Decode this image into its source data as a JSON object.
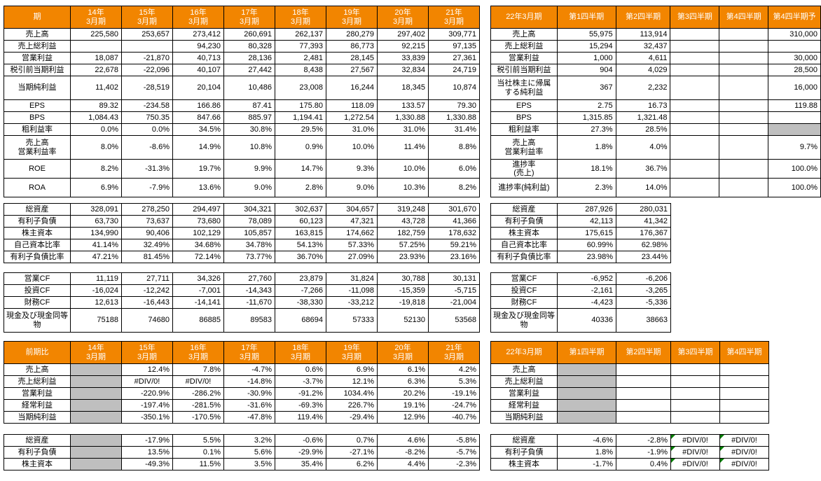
{
  "colors": {
    "header_bg": "#F28500",
    "header_text": "#FFFFFF",
    "gray_cell": "#BFBFBF",
    "grid_border": "#000000",
    "error_flag": "#008000",
    "page_bg": "#FFFFFF"
  },
  "tables": {
    "annual": {
      "corner": "期",
      "headers": [
        "14年\n3月期",
        "15年\n3月期",
        "16年\n3月期",
        "17年\n3月期",
        "18年\n3月期",
        "19年\n3月期",
        "20年\n3月期",
        "21年\n3月期"
      ],
      "blocks": [
        {
          "name": "income",
          "rows": [
            {
              "label": "売上高",
              "values": [
                "225,580",
                "253,657",
                "273,412",
                "260,691",
                "262,137",
                "280,279",
                "297,402",
                "309,771"
              ]
            },
            {
              "label": "売上総利益",
              "values": [
                "",
                "",
                "94,230",
                "80,328",
                "77,393",
                "86,773",
                "92,215",
                "97,135"
              ]
            },
            {
              "label": "営業利益",
              "values": [
                "18,087",
                "-21,870",
                "40,713",
                "28,136",
                "2,481",
                "28,145",
                "33,839",
                "27,361"
              ]
            },
            {
              "label": "税引前当期利益",
              "values": [
                "22,678",
                "-22,096",
                "40,107",
                "27,442",
                "8,438",
                "27,567",
                "32,834",
                "24,719"
              ]
            },
            {
              "label": "当期純利益",
              "values": [
                "11,402",
                "-28,519",
                "20,104",
                "10,486",
                "23,008",
                "16,244",
                "18,345",
                "10,874"
              ]
            },
            {
              "label": "EPS",
              "values": [
                "89.32",
                "-234.58",
                "166.86",
                "87.41",
                "175.80",
                "118.09",
                "133.57",
                "79.30"
              ]
            },
            {
              "label": "BPS",
              "values": [
                "1,084.43",
                "750.35",
                "847.66",
                "885.97",
                "1,194.41",
                "1,272.54",
                "1,330.88",
                "1,330.88"
              ]
            },
            {
              "label": "粗利益率",
              "values": [
                "0.0%",
                "0.0%",
                "34.5%",
                "30.8%",
                "29.5%",
                "31.0%",
                "31.0%",
                "31.4%"
              ]
            },
            {
              "label": "売上高\n営業利益率",
              "values": [
                "8.0%",
                "-8.6%",
                "14.9%",
                "10.8%",
                "0.9%",
                "10.0%",
                "11.4%",
                "8.8%"
              ]
            },
            {
              "label": "ROE",
              "values": [
                "8.2%",
                "-31.3%",
                "19.7%",
                "9.9%",
                "14.7%",
                "9.3%",
                "10.0%",
                "6.0%"
              ]
            },
            {
              "label": "ROA",
              "values": [
                "6.9%",
                "-7.9%",
                "13.6%",
                "9.0%",
                "2.8%",
                "9.0%",
                "10.3%",
                "8.2%"
              ]
            }
          ]
        },
        {
          "name": "balance",
          "rows": [
            {
              "label": "総資産",
              "values": [
                "328,091",
                "278,250",
                "294,497",
                "304,321",
                "302,637",
                "304,657",
                "319,248",
                "301,670"
              ]
            },
            {
              "label": "有利子負債",
              "values": [
                "63,730",
                "73,637",
                "73,680",
                "78,089",
                "60,123",
                "47,321",
                "43,728",
                "41,366"
              ]
            },
            {
              "label": "株主資本",
              "values": [
                "134,990",
                "90,406",
                "102,129",
                "105,857",
                "163,815",
                "174,662",
                "182,759",
                "178,632"
              ]
            },
            {
              "label": "自己資本比率",
              "values": [
                "41.14%",
                "32.49%",
                "34.68%",
                "34.78%",
                "54.13%",
                "57.33%",
                "57.25%",
                "59.21%"
              ]
            },
            {
              "label": "有利子負債比率",
              "values": [
                "47.21%",
                "81.45%",
                "72.14%",
                "73.77%",
                "36.70%",
                "27.09%",
                "23.93%",
                "23.16%"
              ]
            }
          ]
        },
        {
          "name": "cashflow",
          "rows": [
            {
              "label": "営業CF",
              "values": [
                "11,119",
                "27,711",
                "34,326",
                "27,760",
                "23,879",
                "31,824",
                "30,788",
                "30,131"
              ]
            },
            {
              "label": "投資CF",
              "values": [
                "-16,024",
                "-12,242",
                "-7,001",
                "-14,343",
                "-7,266",
                "-11,098",
                "-15,359",
                "-5,715"
              ]
            },
            {
              "label": "財務CF",
              "values": [
                "12,613",
                "-16,443",
                "-14,141",
                "-11,670",
                "-38,330",
                "-33,212",
                "-19,818",
                "-21,004"
              ]
            },
            {
              "label": "現金及び現金同等物",
              "values": [
                "75188",
                "74680",
                "86885",
                "89583",
                "68694",
                "57333",
                "52130",
                "53568"
              ]
            }
          ]
        }
      ]
    },
    "quarterly": {
      "corner": "22年3月期",
      "headers": [
        "第1四半期",
        "第2四半期",
        "第3四半期",
        "第4四半期",
        "第4四半期予"
      ],
      "blocks": [
        {
          "name": "income",
          "rows": [
            {
              "label": "売上高",
              "values": [
                "55,975",
                "113,914",
                "",
                "",
                "310,000"
              ]
            },
            {
              "label": "売上総利益",
              "values": [
                "15,294",
                "32,437",
                "",
                "",
                ""
              ]
            },
            {
              "label": "営業利益",
              "values": [
                "1,000",
                "4,611",
                "",
                "",
                "30,000"
              ]
            },
            {
              "label": "税引前当期利益",
              "values": [
                "904",
                "4,029",
                "",
                "",
                "28,500"
              ]
            },
            {
              "label": "当社株主に帰属する純利益",
              "values": [
                "367",
                "2,232",
                "",
                "",
                "16,000"
              ]
            },
            {
              "label": "EPS",
              "values": [
                "2.75",
                "16.73",
                "",
                "",
                "119.88"
              ]
            },
            {
              "label": "BPS",
              "values": [
                "1,315.85",
                "1,321.48",
                "",
                "",
                ""
              ]
            },
            {
              "label": "粗利益率",
              "values": [
                "27.3%",
                "28.5%",
                "",
                "",
                ""
              ],
              "gray_cols": [
                4
              ]
            },
            {
              "label": "売上高\n営業利益率",
              "values": [
                "1.8%",
                "4.0%",
                "",
                "",
                "9.7%"
              ]
            },
            {
              "label": "進捗率\n(売上)",
              "values": [
                "18.1%",
                "36.7%",
                "",
                "",
                "100.0%"
              ]
            },
            {
              "label": "進捗率(純利益)",
              "values": [
                "2.3%",
                "14.0%",
                "",
                "",
                "100.0%"
              ]
            }
          ]
        },
        {
          "name": "balance",
          "rows": [
            {
              "label": "総資産",
              "values": [
                "287,926",
                "280,031"
              ]
            },
            {
              "label": "有利子負債",
              "values": [
                "42,113",
                "41,342"
              ]
            },
            {
              "label": "株主資本",
              "values": [
                "175,615",
                "176,367"
              ]
            },
            {
              "label": "自己資本比率",
              "values": [
                "60.99%",
                "62.98%"
              ]
            },
            {
              "label": "有利子負債比率",
              "values": [
                "23.98%",
                "23.44%"
              ]
            }
          ]
        },
        {
          "name": "cashflow",
          "rows": [
            {
              "label": "営業CF",
              "values": [
                "-6,952",
                "-6,206"
              ]
            },
            {
              "label": "投資CF",
              "values": [
                "-2,161",
                "-3,265"
              ]
            },
            {
              "label": "財務CF",
              "values": [
                "-4,423",
                "-5,336"
              ]
            },
            {
              "label": "現金及び現金同等物",
              "values": [
                "40336",
                "38663"
              ]
            }
          ]
        }
      ]
    },
    "annual_yoy": {
      "corner": "前期比",
      "headers": [
        "14年\n3月期",
        "15年\n3月期",
        "16年\n3月期",
        "17年\n3月期",
        "18年\n3月期",
        "19年\n3月期",
        "20年\n3月期",
        "21年\n3月期"
      ],
      "blocks": [
        {
          "name": "income",
          "rows": [
            {
              "label": "売上高",
              "values": [
                "",
                "12.4%",
                "7.8%",
                "-4.7%",
                "0.6%",
                "6.9%",
                "6.1%",
                "4.2%"
              ],
              "gray_cols": [
                0
              ]
            },
            {
              "label": "売上総利益",
              "values": [
                "",
                "#DIV/0!",
                "#DIV/0!",
                "-14.8%",
                "-3.7%",
                "12.1%",
                "6.3%",
                "5.3%"
              ],
              "gray_cols": [
                0
              ]
            },
            {
              "label": "営業利益",
              "values": [
                "",
                "-220.9%",
                "-286.2%",
                "-30.9%",
                "-91.2%",
                "1034.4%",
                "20.2%",
                "-19.1%"
              ],
              "gray_cols": [
                0
              ]
            },
            {
              "label": "経常利益",
              "values": [
                "",
                "-197.4%",
                "-281.5%",
                "-31.6%",
                "-69.3%",
                "226.7%",
                "19.1%",
                "-24.7%"
              ],
              "gray_cols": [
                0
              ]
            },
            {
              "label": "当期純利益",
              "values": [
                "",
                "-350.1%",
                "-170.5%",
                "-47.8%",
                "119.4%",
                "-29.4%",
                "12.9%",
                "-40.7%"
              ],
              "gray_cols": [
                0
              ]
            }
          ]
        },
        {
          "name": "balance",
          "rows": [
            {
              "label": "総資産",
              "values": [
                "",
                "-17.9%",
                "5.5%",
                "3.2%",
                "-0.6%",
                "0.7%",
                "4.6%",
                "-5.8%"
              ],
              "gray_cols": [
                0
              ]
            },
            {
              "label": "有利子負債",
              "values": [
                "",
                "13.5%",
                "0.1%",
                "5.6%",
                "-29.9%",
                "-27.1%",
                "-8.2%",
                "-5.7%"
              ],
              "gray_cols": [
                0
              ]
            },
            {
              "label": "株主資本",
              "values": [
                "",
                "-49.3%",
                "11.5%",
                "3.5%",
                "35.4%",
                "6.2%",
                "4.4%",
                "-2.3%"
              ],
              "gray_cols": [
                0
              ]
            }
          ]
        }
      ]
    },
    "quarterly_yoy": {
      "corner": "22年3月期",
      "headers": [
        "第1四半期",
        "第2四半期",
        "第3四半期",
        "第4四半期"
      ],
      "blocks": [
        {
          "name": "income",
          "rows": [
            {
              "label": "売上高",
              "values": [
                "",
                "",
                "",
                ""
              ],
              "gray_cols": [
                0
              ]
            },
            {
              "label": "売上総利益",
              "values": [
                "",
                "",
                "",
                ""
              ],
              "gray_cols": [
                0
              ]
            },
            {
              "label": "営業利益",
              "values": [
                "",
                "",
                "",
                ""
              ],
              "gray_cols": [
                0
              ]
            },
            {
              "label": "経常利益",
              "values": [
                "",
                "",
                "",
                ""
              ],
              "gray_cols": [
                0
              ]
            },
            {
              "label": "当期純利益",
              "values": [
                "",
                "",
                "",
                ""
              ],
              "gray_cols": [
                0
              ]
            }
          ]
        },
        {
          "name": "balance",
          "rows": [
            {
              "label": "総資産",
              "values": [
                "-4.6%",
                "-2.8%",
                "#DIV/0!",
                "#DIV/0!"
              ],
              "err_cols": [
                2,
                3
              ]
            },
            {
              "label": "有利子負債",
              "values": [
                "1.8%",
                "-1.9%",
                "#DIV/0!",
                "#DIV/0!"
              ],
              "err_cols": [
                2,
                3
              ]
            },
            {
              "label": "株主資本",
              "values": [
                "-1.7%",
                "0.4%",
                "#DIV/0!",
                "#DIV/0!"
              ],
              "err_cols": [
                2,
                3
              ]
            }
          ]
        }
      ]
    }
  }
}
